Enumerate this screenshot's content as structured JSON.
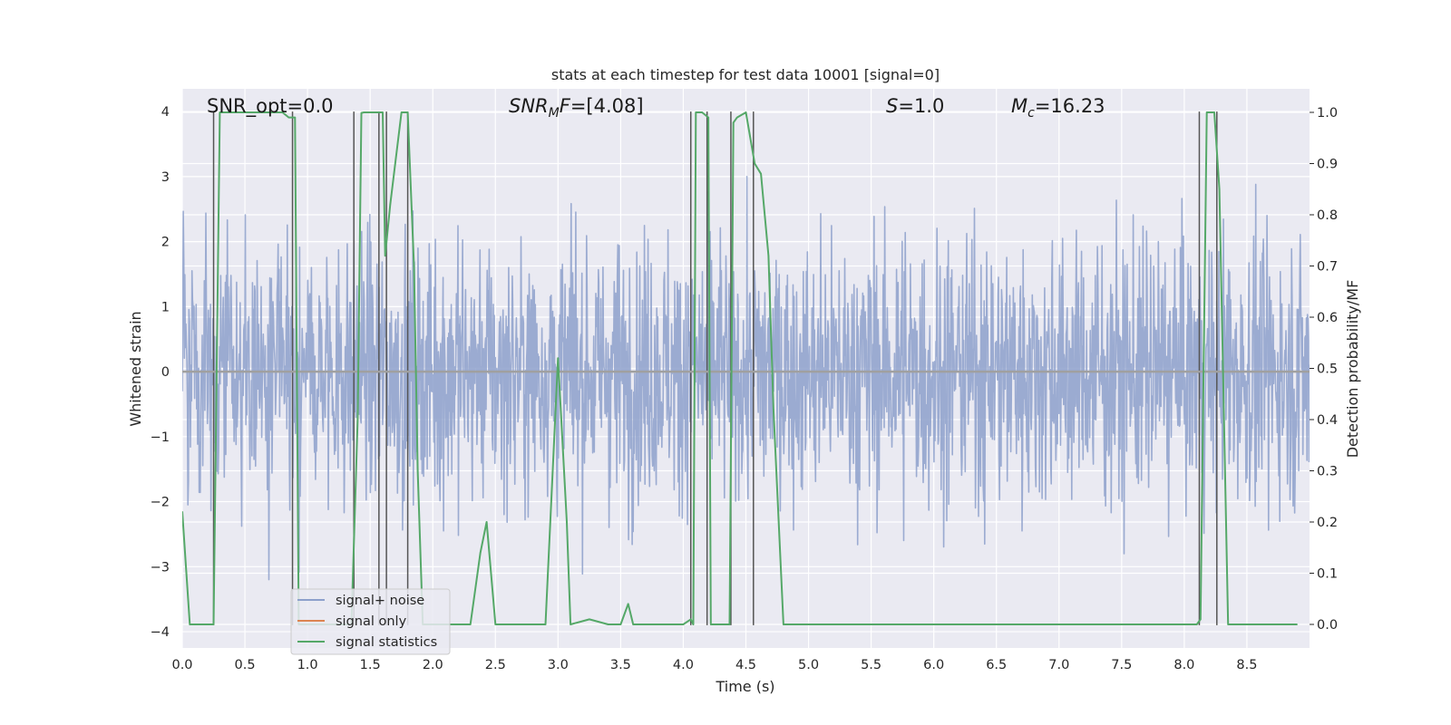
{
  "chart_data": {
    "type": "line",
    "title": "stats at each timestep for test data 10001 [signal=0]",
    "xlabel": "Time (s)",
    "ylabel": "Whitened strain",
    "y2label": "Detection probability/MF",
    "xlim": [
      0.0,
      9.0
    ],
    "ylim": [
      -4.25,
      4.35
    ],
    "y2lim": [
      -0.046,
      1.046
    ],
    "xticks": [
      "0.0",
      "0.5",
      "1.0",
      "1.5",
      "2.0",
      "2.5",
      "3.0",
      "3.5",
      "4.0",
      "4.5",
      "5.0",
      "5.5",
      "6.0",
      "6.5",
      "7.0",
      "7.5",
      "8.0",
      "8.5"
    ],
    "yticks": [
      "4",
      "3",
      "2",
      "1",
      "0",
      "−1",
      "−2",
      "−3",
      "−4"
    ],
    "y2ticks": [
      "1.0",
      "0.9",
      "0.8",
      "0.7",
      "0.6",
      "0.5",
      "0.4",
      "0.3",
      "0.2",
      "0.1",
      "0.0"
    ],
    "annotations": {
      "snr_opt": {
        "label": "SNR_opt",
        "value": "=0.0"
      },
      "snr_mf": {
        "main": "SNR",
        "sub": "M",
        "tail": "F",
        "value": "=[4.08]"
      },
      "s": {
        "label": "S",
        "value": "=1.0"
      },
      "mc": {
        "main": "M",
        "sub": "c",
        "value": "=16.23"
      }
    },
    "legend": {
      "position": "lower-left",
      "entries": [
        {
          "label": "signal+ noise",
          "color": "#8da0cb"
        },
        {
          "label": "signal only",
          "color": "#dd8452"
        },
        {
          "label": "signal statistics",
          "color": "#55a868"
        }
      ]
    },
    "series": [
      {
        "name": "signal+ noise",
        "axis": "left",
        "color": "#8da0cb",
        "style": "dense whitened noise, amplitude roughly within ±2 with peaks to about ±3.7",
        "typical_amplitude": 1.0,
        "peak_min": -3.7,
        "peak_max": 3.7
      },
      {
        "name": "signal only",
        "axis": "left",
        "color": "#dd8452",
        "style": "flat line at zero",
        "value": 0.0
      },
      {
        "name": "signal statistics",
        "axis": "right",
        "color": "#55a868",
        "x": [
          0.0,
          0.06,
          0.1,
          0.2,
          0.25,
          0.3,
          0.4,
          0.6,
          0.8,
          0.85,
          0.9,
          0.93,
          1.3,
          1.35,
          1.4,
          1.43,
          1.45,
          1.6,
          1.62,
          1.66,
          1.7,
          1.75,
          1.8,
          1.85,
          1.88,
          1.92,
          2.0,
          2.1,
          2.3,
          2.38,
          2.43,
          2.5,
          2.9,
          3.0,
          3.07,
          3.1,
          3.25,
          3.4,
          3.5,
          3.56,
          3.6,
          4.0,
          4.06,
          4.08,
          4.1,
          4.15,
          4.2,
          4.22,
          4.3,
          4.37,
          4.4,
          4.43,
          4.5,
          4.57,
          4.62,
          4.68,
          4.72,
          4.8,
          8.0,
          8.1,
          8.13,
          8.18,
          8.24,
          8.28,
          8.35,
          8.9
        ],
        "values": [
          0.22,
          0.0,
          0.0,
          0.0,
          0.0,
          1.0,
          1.0,
          1.0,
          1.0,
          0.99,
          0.99,
          0.0,
          0.0,
          0.0,
          0.4,
          0.999,
          1.0,
          1.0,
          0.72,
          0.82,
          0.9,
          1.0,
          1.0,
          0.7,
          0.3,
          0.0,
          0.0,
          0.0,
          0.0,
          0.14,
          0.2,
          0.0,
          0.0,
          0.52,
          0.2,
          0.0,
          0.01,
          0.0,
          0.0,
          0.04,
          0.0,
          0.0,
          0.01,
          0.0,
          1.0,
          1.0,
          0.99,
          0.0,
          0.0,
          0.0,
          0.98,
          0.99,
          1.0,
          0.9,
          0.88,
          0.72,
          0.42,
          0.0,
          0.0,
          0.0,
          0.01,
          1.0,
          1.0,
          0.85,
          0.0,
          0.0
        ]
      },
      {
        "name": "trigger markers",
        "axis": "left",
        "color": "#555555",
        "style": "vertical lines spanning the strain axis",
        "x": [
          0.25,
          0.88,
          1.37,
          1.57,
          1.63,
          1.8,
          4.06,
          4.19,
          4.38,
          4.56,
          8.12,
          8.26
        ]
      }
    ]
  }
}
